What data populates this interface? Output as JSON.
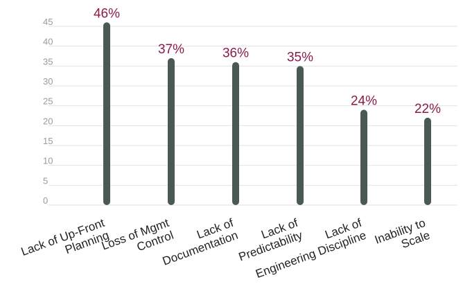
{
  "chart_data": {
    "type": "bar",
    "categories": [
      [
        "Lack of Up-Front",
        "Planning"
      ],
      [
        "Loss of Mgmt",
        "Control"
      ],
      [
        "Lack of",
        "Documentation"
      ],
      [
        "Lack of",
        "Predictability"
      ],
      [
        "Lack of",
        "Engineering Discipline"
      ],
      [
        "Inability to",
        "Scale"
      ]
    ],
    "values": [
      46,
      37,
      36,
      35,
      24,
      22
    ],
    "data_labels": [
      "46%",
      "37%",
      "36%",
      "35%",
      "24%",
      "22%"
    ],
    "y_ticks": [
      0,
      5,
      10,
      15,
      20,
      25,
      30,
      35,
      40,
      45
    ],
    "ylim": [
      0,
      45
    ],
    "grid": true,
    "bar_color": "#4a5a52",
    "label_color": "#8b1a4a",
    "tick_color": "#9a9a9a"
  }
}
